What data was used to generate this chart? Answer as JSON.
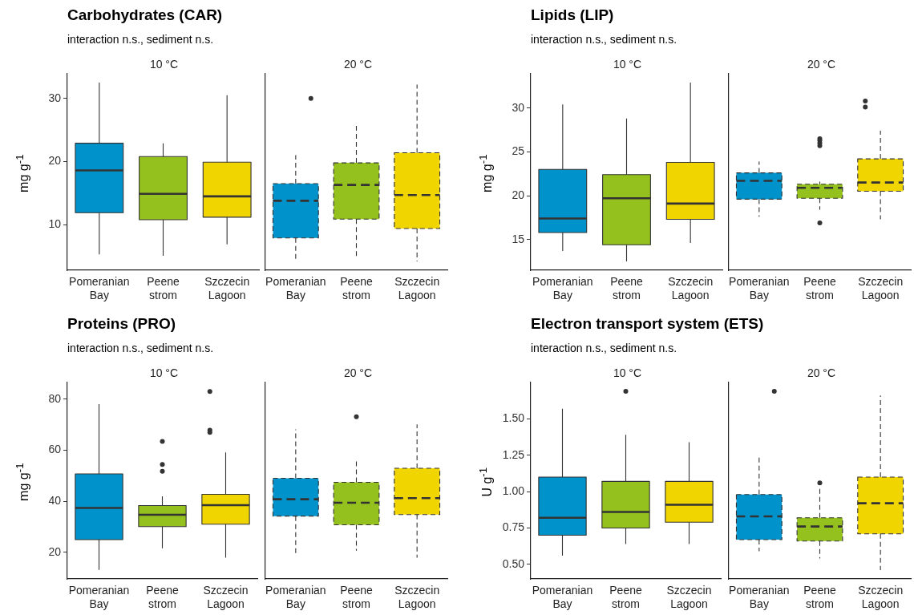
{
  "chart_data": [
    {
      "type": "box",
      "title": "Carbohydrates (CAR)",
      "subtitle": "interaction n.s., sediment n.s.",
      "annotations": [
        "10 °C"
      ],
      "ylabel": "mg g$^{-1}$",
      "categories": [
        "Pomeranian Bay",
        "Peene strom",
        "Szczecin Lagoon"
      ],
      "colors": [
        "#0093cb",
        "#95c11f",
        "#f0d500"
      ],
      "line_style": "solid",
      "ylim": [
        2.8,
        33.9
      ],
      "yticks": [
        10,
        20,
        30
      ],
      "boxes": [
        {
          "low": 5.3,
          "q1": 11.9,
          "median": 18.6,
          "q3": 22.9,
          "high": 32.5
        },
        {
          "low": 5.1,
          "q1": 10.8,
          "median": 14.9,
          "q3": 20.8,
          "high": 22.9
        },
        {
          "low": 6.9,
          "q1": 11.2,
          "median": 14.5,
          "q3": 19.9,
          "high": 30.5
        }
      ]
    },
    {
      "type": "box",
      "annotations": [
        "20 °C"
      ],
      "categories": [
        "Pomeranian Bay",
        "Peene strom",
        "Szczecin Lagoon"
      ],
      "colors": [
        "#0093cb",
        "#95c11f",
        "#f0d500"
      ],
      "line_style": "dashed",
      "tick_labels": "x",
      "ylim": [
        2.8,
        33.9
      ],
      "yticks": [
        10,
        20,
        30
      ],
      "boxes": [
        {
          "low": 4.2,
          "q1": 7.9,
          "median": 13.8,
          "q3": 16.5,
          "high": 21.0,
          "outliers": [
            30
          ]
        },
        {
          "low": 4.8,
          "q1": 10.9,
          "median": 16.3,
          "q3": 19.8,
          "high": 26.0
        },
        {
          "low": 4.2,
          "q1": 9.4,
          "median": 14.7,
          "q3": 21.4,
          "high": 32.2
        }
      ]
    },
    {
      "type": "box",
      "title": "Lipids (LIP)",
      "subtitle": "interaction n.s., sediment n.s.",
      "annotations": [
        "10 °C"
      ],
      "ylabel": "mg g$^{-1}$",
      "categories": [
        "Pomeranian Bay",
        "Peene strom",
        "Szczecin Lagoon"
      ],
      "colors": [
        "#0093cb",
        "#95c11f",
        "#f0d500"
      ],
      "line_style": "solid",
      "ylim": [
        11.5,
        33.9
      ],
      "yticks": [
        15,
        20,
        25,
        30
      ],
      "boxes": [
        {
          "low": 13.7,
          "q1": 15.8,
          "median": 17.4,
          "q3": 23.0,
          "high": 30.4
        },
        {
          "low": 12.5,
          "q1": 14.4,
          "median": 19.7,
          "q3": 22.4,
          "high": 28.8
        },
        {
          "low": 14.6,
          "q1": 17.3,
          "median": 19.1,
          "q3": 23.8,
          "high": 32.9
        }
      ]
    },
    {
      "type": "box",
      "annotations": [
        "20 °C"
      ],
      "categories": [
        "Pomeranian Bay",
        "Peene strom",
        "Szczecin Lagoon"
      ],
      "colors": [
        "#0093cb",
        "#95c11f",
        "#f0d500"
      ],
      "line_style": "dashed",
      "tick_labels": "x",
      "ylim": [
        11.5,
        33.9
      ],
      "yticks": [
        15,
        20,
        25,
        30
      ],
      "boxes": [
        {
          "low": 17.6,
          "q1": 19.6,
          "median": 21.7,
          "q3": 22.6,
          "high": 23.9
        },
        {
          "low": 18.4,
          "q1": 19.7,
          "median": 20.9,
          "q3": 21.3,
          "high": 21.6,
          "outliers": [
            26.5,
            26.3,
            26.0,
            25.7,
            16.9
          ]
        },
        {
          "low": 17.3,
          "q1": 20.5,
          "median": 21.5,
          "q3": 24.2,
          "high": 27.4,
          "outliers": [
            30.8,
            30.1
          ]
        }
      ]
    },
    {
      "type": "box",
      "title": "Proteins (PRO)",
      "subtitle": "interaction n.s., sediment n.s.",
      "annotations": [
        "10 °C"
      ],
      "ylabel": "mg g$^{-1}$",
      "categories": [
        "Pomeranian Bay",
        "Peene strom",
        "Szczecin Lagoon"
      ],
      "colors": [
        "#0093cb",
        "#95c11f",
        "#f0d500"
      ],
      "line_style": "solid",
      "ylim": [
        9.6,
        86.5
      ],
      "yticks": [
        20,
        40,
        60,
        80
      ],
      "boxes": [
        {
          "low": 13.1,
          "q1": 25.0,
          "median": 37.4,
          "q3": 50.7,
          "high": 78.0
        },
        {
          "low": 21.6,
          "q1": 30.1,
          "median": 34.7,
          "q3": 38.3,
          "high": 41.9,
          "outliers": [
            63.4,
            54.4,
            51.7
          ]
        },
        {
          "low": 17.9,
          "q1": 31.0,
          "median": 38.5,
          "q3": 42.7,
          "high": 59.1,
          "outliers": [
            83.0,
            67.8,
            67.0
          ]
        }
      ]
    },
    {
      "type": "box",
      "annotations": [
        "20 °C"
      ],
      "categories": [
        "Pomeranian Bay",
        "Peene strom",
        "Szczecin Lagoon"
      ],
      "colors": [
        "#0093cb",
        "#95c11f",
        "#f0d500"
      ],
      "line_style": "dashed",
      "tick_labels": "x",
      "ylim": [
        9.6,
        86.5
      ],
      "yticks": [
        20,
        40,
        60,
        80
      ],
      "boxes": [
        {
          "low": 19.2,
          "q1": 34.2,
          "median": 40.8,
          "q3": 49.0,
          "high": 68.1
        },
        {
          "low": 20.7,
          "q1": 30.8,
          "median": 39.4,
          "q3": 47.4,
          "high": 56.2,
          "outliers": [
            73.1
          ]
        },
        {
          "low": 17.9,
          "q1": 34.8,
          "median": 41.2,
          "q3": 52.9,
          "high": 70.1
        }
      ]
    },
    {
      "type": "box",
      "title": "Electron transport system (ETS)",
      "subtitle": "interaction n.s., sediment n.s.",
      "annotations": [
        "10 °C"
      ],
      "ylabel": "U g$^{-1}$",
      "categories": [
        "Pomeranian Bay",
        "Peene strom",
        "Szczecin Lagoon"
      ],
      "colors": [
        "#0093cb",
        "#95c11f",
        "#f0d500"
      ],
      "line_style": "solid",
      "ylim": [
        0.4,
        1.75
      ],
      "yticks": [
        {
          "value": 0.5,
          "label": "0.50"
        },
        {
          "value": 0.75,
          "label": "0.75"
        },
        {
          "value": 1,
          "label": "1.00"
        },
        {
          "value": 1.25,
          "label": "1.25"
        },
        {
          "value": 1.5,
          "label": "1.50"
        }
      ],
      "boxes": [
        {
          "low": 0.56,
          "q1": 0.7,
          "median": 0.82,
          "q3": 1.1,
          "high": 1.57
        },
        {
          "low": 0.64,
          "q1": 0.75,
          "median": 0.86,
          "q3": 1.07,
          "high": 1.39,
          "outliers": [
            1.69
          ]
        },
        {
          "low": 0.64,
          "q1": 0.79,
          "median": 0.91,
          "q3": 1.07,
          "high": 1.34
        }
      ]
    },
    {
      "type": "box",
      "annotations": [
        "20 °C"
      ],
      "categories": [
        "Pomeranian Bay",
        "Peene strom",
        "Szczecin Lagoon"
      ],
      "colors": [
        "#0093cb",
        "#95c11f",
        "#f0d500"
      ],
      "line_style": "dashed",
      "tick_labels": "x",
      "ylim": [
        0.4,
        1.75
      ],
      "yticks": [
        0.5,
        0.75,
        1,
        1.25,
        1.5
      ],
      "boxes": [
        {
          "low": 0.59,
          "q1": 0.67,
          "median": 0.83,
          "q3": 0.98,
          "high": 1.24,
          "outliers": [
            1.69
          ]
        },
        {
          "low": 0.54,
          "q1": 0.66,
          "median": 0.76,
          "q3": 0.82,
          "high": 1.02,
          "outliers": [
            1.06
          ]
        },
        {
          "low": 0.46,
          "q1": 0.71,
          "median": 0.92,
          "q3": 1.1,
          "high": 1.66
        }
      ]
    }
  ]
}
